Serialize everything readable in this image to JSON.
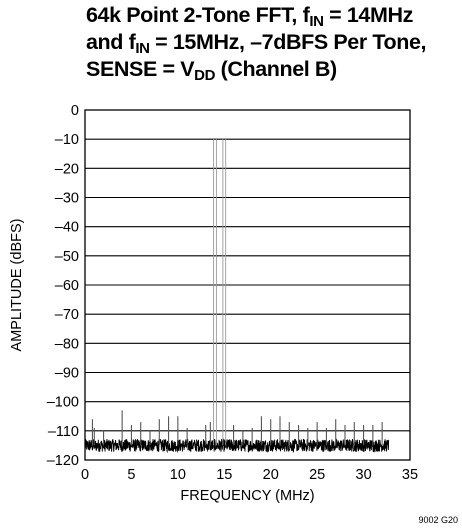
{
  "chart_data": {
    "type": "line",
    "title_lines": [
      {
        "parts": [
          {
            "t": "64k Point 2-Tone FFT, f"
          },
          {
            "t": "IN",
            "sub": true
          },
          {
            "t": " = 14MHz"
          }
        ]
      },
      {
        "parts": [
          {
            "t": "and f"
          },
          {
            "t": "IN",
            "sub": true
          },
          {
            "t": " = 15MHz, –7dBFS Per Tone,"
          }
        ]
      },
      {
        "parts": [
          {
            "t": "SENSE = V"
          },
          {
            "t": "DD",
            "sub": true
          },
          {
            "t": " (Channel B)"
          }
        ]
      }
    ],
    "xlabel": "FREQUENCY (MHz)",
    "ylabel": "AMPLITUDE (dBFS)",
    "xlim": [
      0,
      35
    ],
    "ylim": [
      -120,
      0
    ],
    "x_ticks": [
      0,
      5,
      10,
      15,
      20,
      25,
      30,
      35
    ],
    "x_tick_labels": [
      "0",
      "5",
      "10",
      "15",
      "20",
      "25",
      "30",
      "35"
    ],
    "y_ticks": [
      0,
      -10,
      -20,
      -30,
      -40,
      -50,
      -60,
      -70,
      -80,
      -90,
      -100,
      -110,
      -120
    ],
    "y_tick_labels": [
      "0",
      "–10",
      "–20",
      "–30",
      "–40",
      "–50",
      "–60",
      "–70",
      "–80",
      "–90",
      "–100",
      "–110",
      "–120"
    ],
    "grid": "horizontal",
    "noise_floor": {
      "x_range": [
        0,
        32.7
      ],
      "level": -115,
      "spread": 2.2
    },
    "tones": [
      {
        "x": 14,
        "y": -10
      },
      {
        "x": 15,
        "y": -10
      }
    ],
    "spurs": [
      {
        "x": 0.8,
        "y": -106
      },
      {
        "x": 1.0,
        "y": -109
      },
      {
        "x": 2.0,
        "y": -110
      },
      {
        "x": 4.0,
        "y": -103
      },
      {
        "x": 5.0,
        "y": -108
      },
      {
        "x": 6.0,
        "y": -107
      },
      {
        "x": 7.0,
        "y": -110
      },
      {
        "x": 8.0,
        "y": -106
      },
      {
        "x": 9.0,
        "y": -105
      },
      {
        "x": 10.0,
        "y": -105
      },
      {
        "x": 11.0,
        "y": -109
      },
      {
        "x": 13.0,
        "y": -108
      },
      {
        "x": 13.5,
        "y": -107
      },
      {
        "x": 16.0,
        "y": -108
      },
      {
        "x": 17.0,
        "y": -110
      },
      {
        "x": 18.0,
        "y": -109
      },
      {
        "x": 19.0,
        "y": -105
      },
      {
        "x": 20.0,
        "y": -106
      },
      {
        "x": 21.0,
        "y": -105
      },
      {
        "x": 22.0,
        "y": -107
      },
      {
        "x": 23.0,
        "y": -108
      },
      {
        "x": 24.0,
        "y": -109
      },
      {
        "x": 25.0,
        "y": -107
      },
      {
        "x": 26.0,
        "y": -109
      },
      {
        "x": 27.0,
        "y": -106
      },
      {
        "x": 28.0,
        "y": -108
      },
      {
        "x": 29.0,
        "y": -107
      },
      {
        "x": 30.0,
        "y": -108
      },
      {
        "x": 31.0,
        "y": -108
      },
      {
        "x": 32.0,
        "y": -107
      }
    ],
    "colors": {
      "trace": "#000000",
      "tone": "#9a9a9a",
      "grid": "#000000"
    }
  },
  "figure_id": "9002 G20"
}
